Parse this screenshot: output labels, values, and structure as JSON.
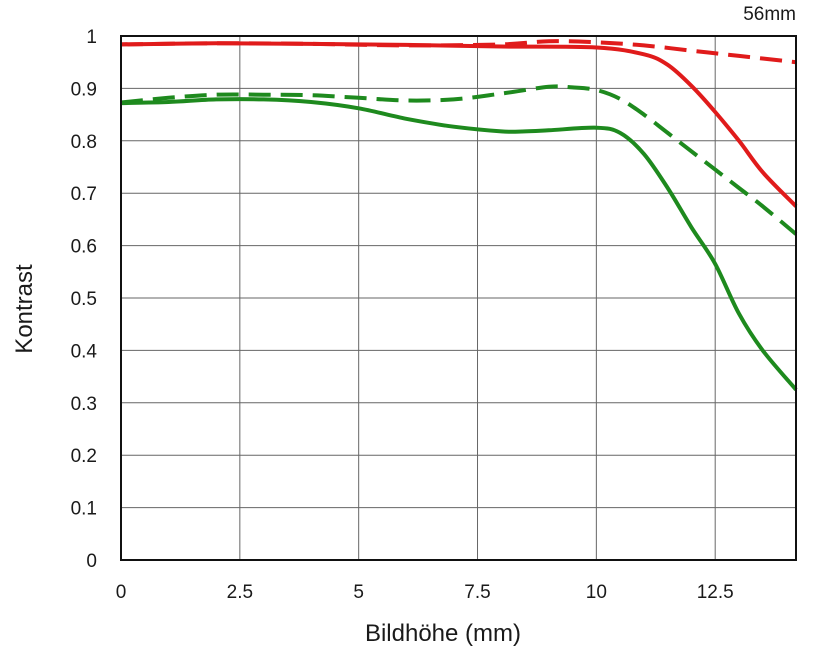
{
  "chart_data": {
    "type": "line",
    "title": "56mm",
    "xlabel": "Bildhöhe (mm)",
    "ylabel": "Kontrast",
    "xlim": [
      0,
      14.2
    ],
    "ylim": [
      0,
      1
    ],
    "xticks": [
      0,
      2.5,
      5,
      7.5,
      10,
      12.5
    ],
    "xtick_labels": [
      "0",
      "2.5",
      "5",
      "7.5",
      "10",
      "12.5"
    ],
    "yticks": [
      0,
      0.1,
      0.2,
      0.3,
      0.4,
      0.5,
      0.6,
      0.7,
      0.8,
      0.9,
      1
    ],
    "ytick_labels": [
      "0",
      "0.1",
      "0.2",
      "0.3",
      "0.4",
      "0.5",
      "0.6",
      "0.7",
      "0.8",
      "0.9",
      "1"
    ],
    "grid": true,
    "legend": "none",
    "series": [
      {
        "color": "#e01b1b",
        "style": "solid",
        "x": [
          0,
          2,
          4,
          6,
          8,
          10,
          11,
          11.5,
          12,
          12.5,
          13,
          13.5,
          14.2
        ],
        "y": [
          0.984,
          0.986,
          0.985,
          0.983,
          0.98,
          0.978,
          0.965,
          0.945,
          0.905,
          0.855,
          0.8,
          0.74,
          0.675
        ]
      },
      {
        "color": "#e01b1b",
        "style": "dashed",
        "x": [
          0,
          2,
          4,
          6,
          8,
          9,
          10,
          11,
          12,
          13,
          14.2
        ],
        "y": [
          0.984,
          0.986,
          0.985,
          0.982,
          0.984,
          0.99,
          0.988,
          0.982,
          0.972,
          0.962,
          0.95
        ]
      },
      {
        "color": "#1e8a1e",
        "style": "solid",
        "x": [
          0,
          1,
          2,
          3,
          4,
          5,
          6,
          7,
          8,
          8.5,
          9,
          10,
          10.5,
          11,
          11.5,
          12,
          12.5,
          13,
          13.5,
          14.2
        ],
        "y": [
          0.872,
          0.874,
          0.879,
          0.879,
          0.874,
          0.862,
          0.842,
          0.827,
          0.818,
          0.818,
          0.82,
          0.825,
          0.815,
          0.775,
          0.71,
          0.635,
          0.565,
          0.47,
          0.4,
          0.325
        ]
      },
      {
        "color": "#1e8a1e",
        "style": "dashed",
        "x": [
          0,
          1,
          2,
          3,
          4,
          5,
          6,
          7,
          8,
          9,
          9.5,
          10,
          10.5,
          11,
          11.5,
          12,
          12.5,
          13,
          13.5,
          14.2
        ],
        "y": [
          0.873,
          0.882,
          0.888,
          0.888,
          0.887,
          0.882,
          0.877,
          0.879,
          0.89,
          0.903,
          0.902,
          0.897,
          0.88,
          0.85,
          0.815,
          0.78,
          0.745,
          0.71,
          0.675,
          0.622
        ]
      }
    ]
  }
}
